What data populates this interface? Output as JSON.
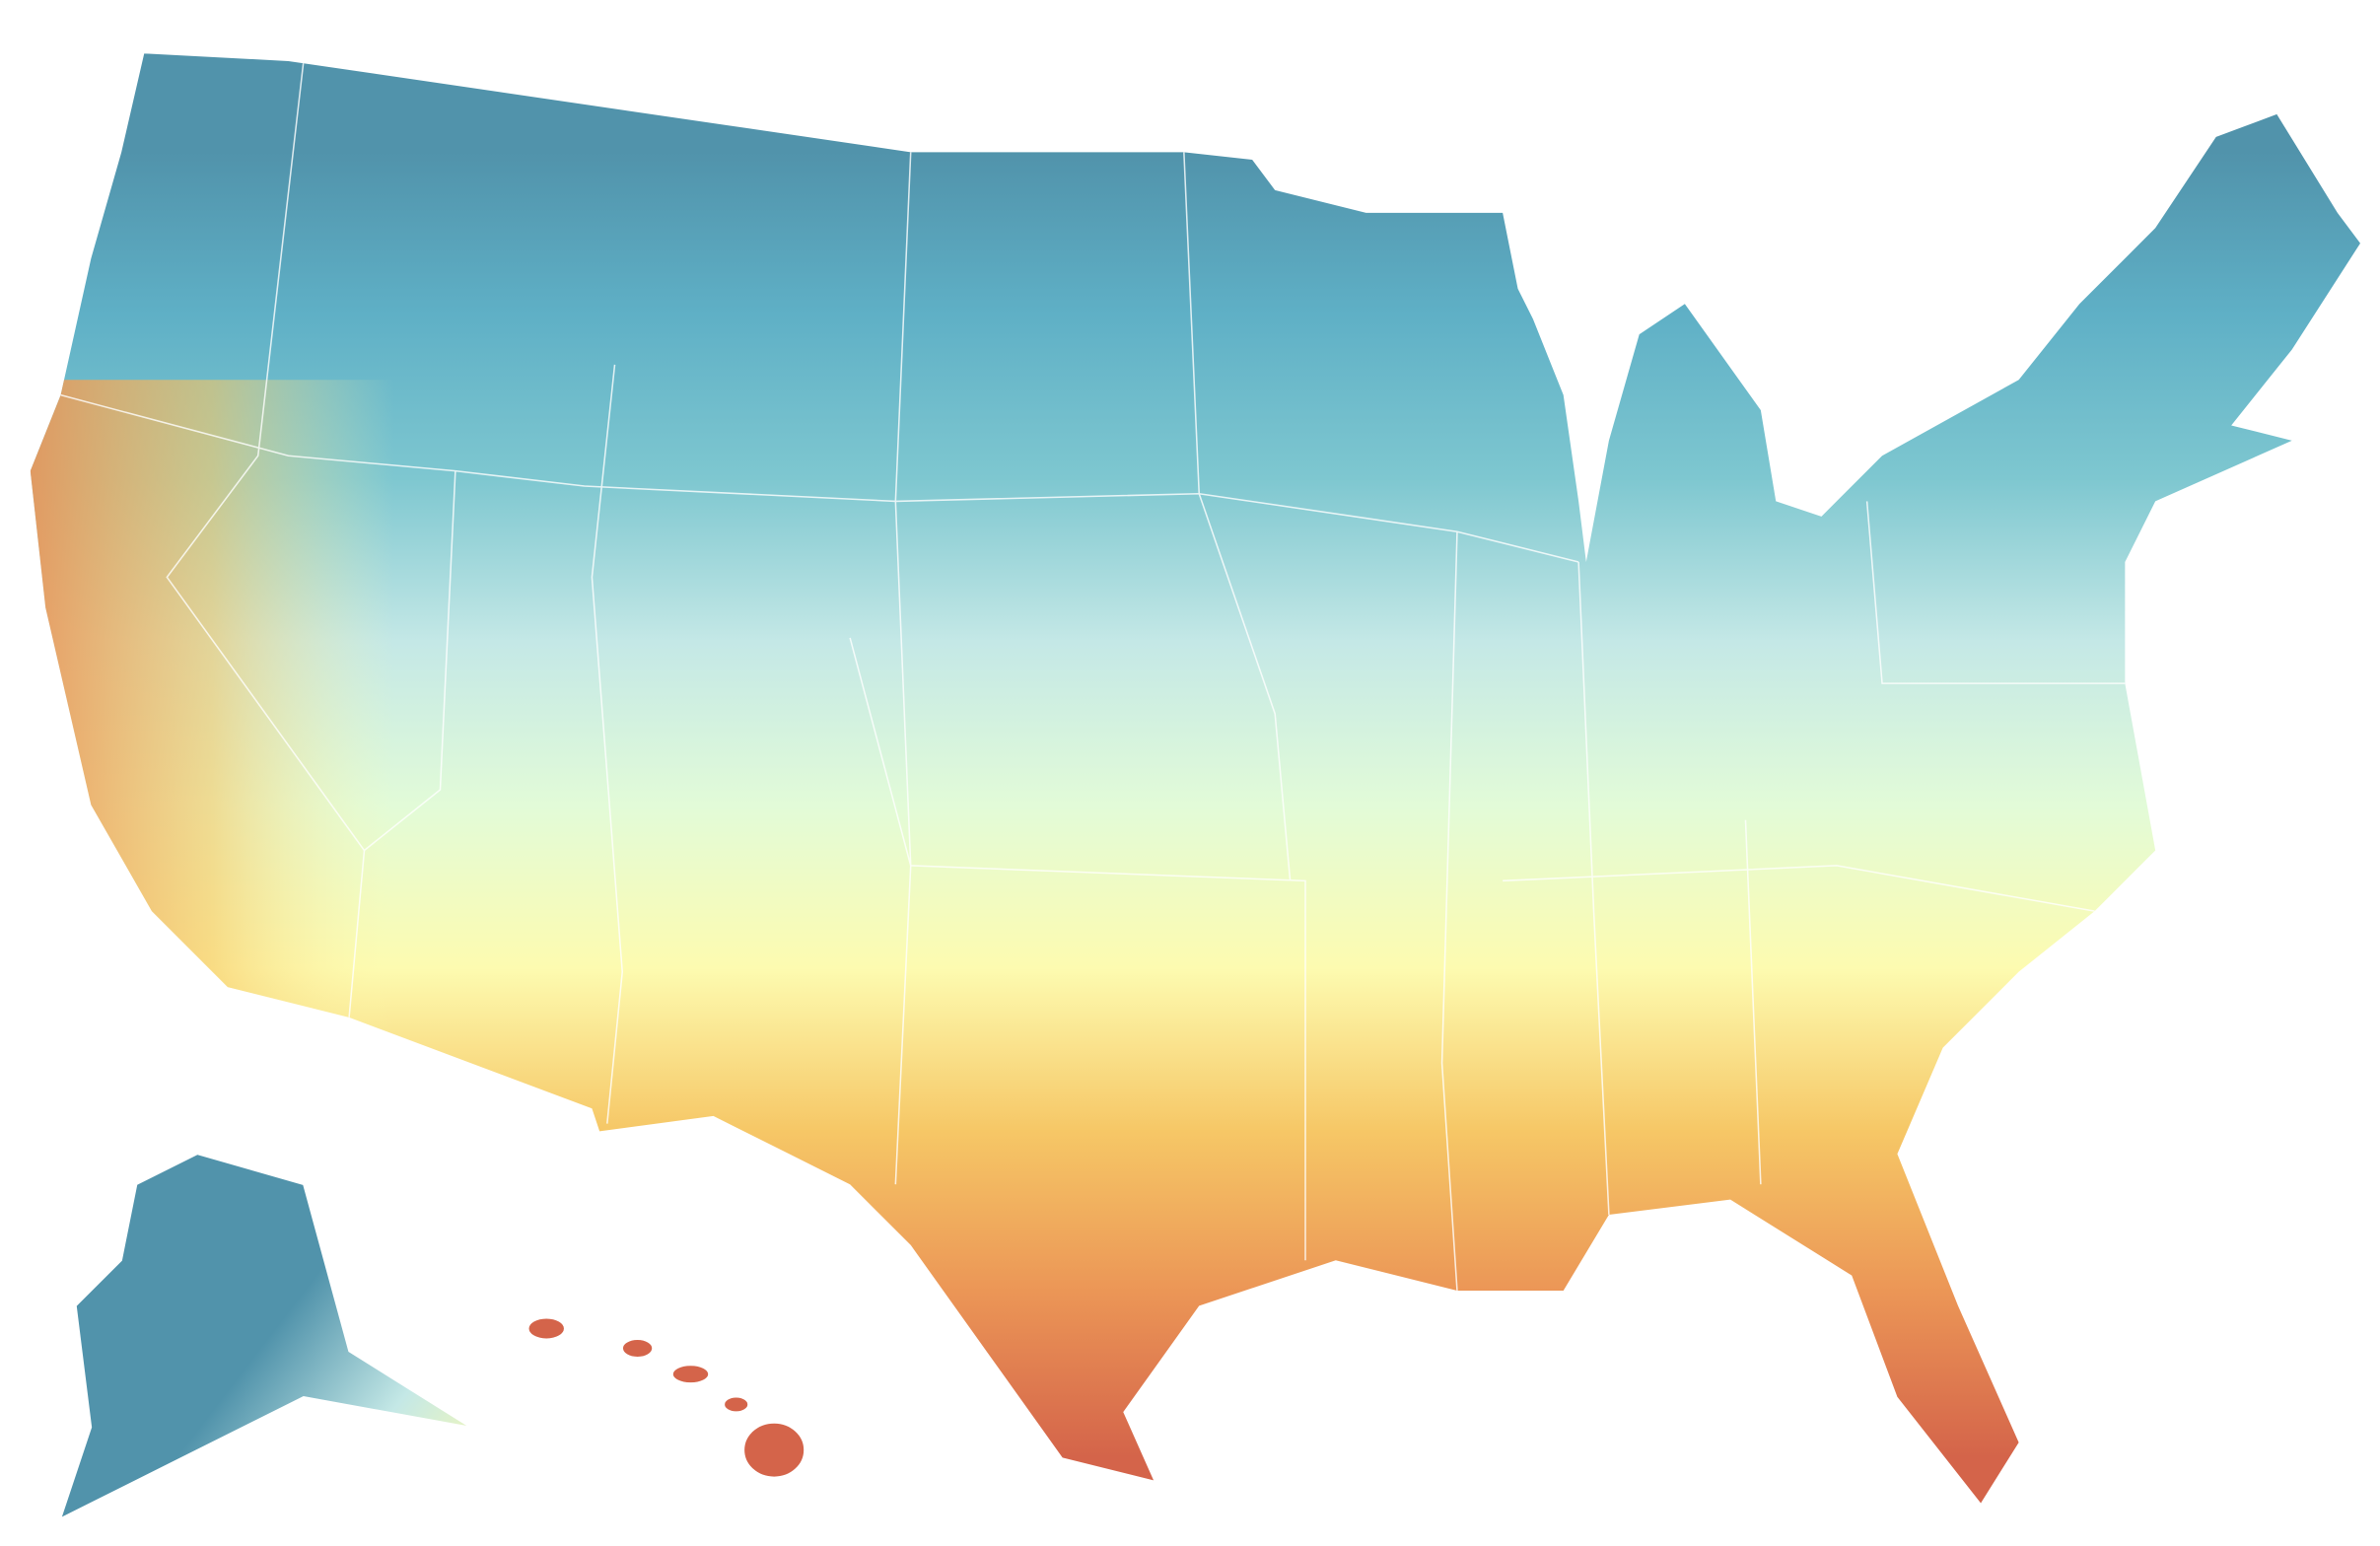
{
  "map": {
    "palette": [
      "#5193ab",
      "#5fb0c6",
      "#7ec7d0",
      "#c4e8e6",
      "#e2fbd8",
      "#fdfbb0",
      "#f6c766",
      "#eb9556",
      "#d4644a"
    ]
  }
}
